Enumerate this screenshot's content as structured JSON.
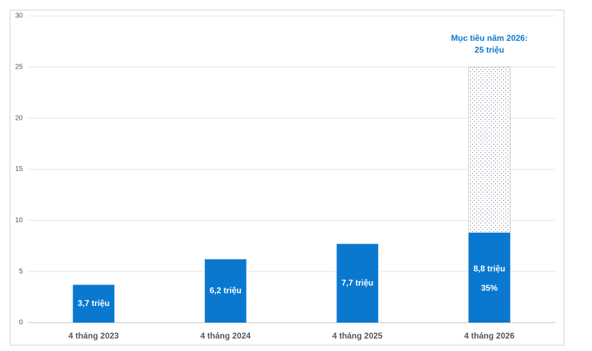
{
  "chart_data": {
    "type": "bar",
    "categories": [
      "4 tháng 2023",
      "4 tháng 2024",
      "4 tháng 2025",
      "4 tháng 2026"
    ],
    "values": [
      3.7,
      6.2,
      7.7,
      8.8
    ],
    "value_labels": [
      "3,7 triệu",
      "6,2 triệu",
      "7,7 triệu",
      "8,8 triệu"
    ],
    "color": "#0b78d0",
    "target": {
      "category_index": 3,
      "value": 25,
      "label_lines": [
        "Mục tiêu năm 2026:",
        "25 triệu"
      ]
    },
    "target_share_label": "35%",
    "ylim": [
      0,
      30
    ],
    "yticks": [
      0,
      5,
      10,
      15,
      20,
      25,
      30
    ],
    "grid": true
  }
}
